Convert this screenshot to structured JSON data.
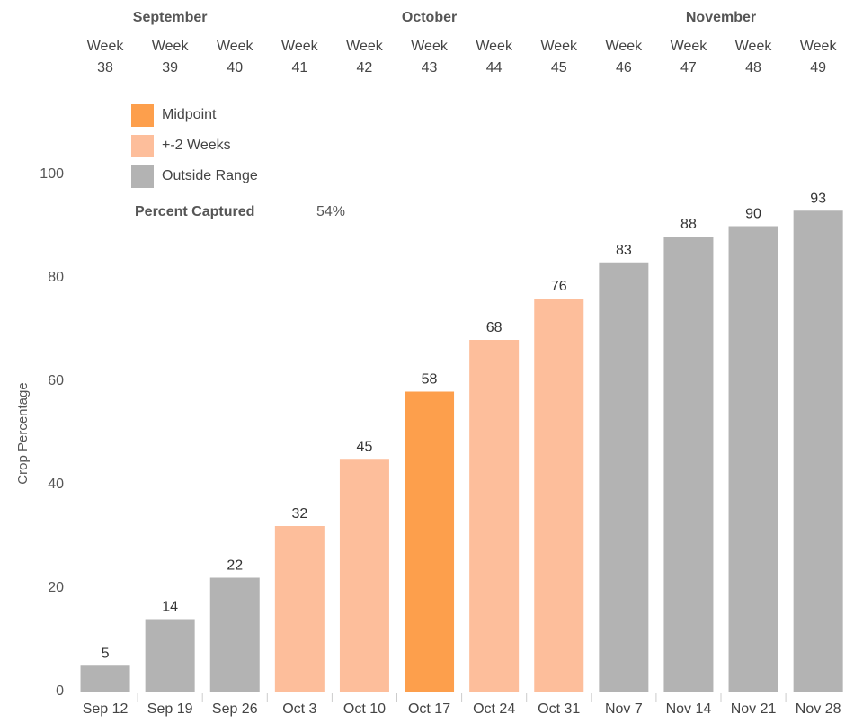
{
  "chart_data": {
    "type": "bar",
    "months": [
      "September",
      "October",
      "November"
    ],
    "weeks": [
      "Week 38",
      "Week 39",
      "Week 40",
      "Week 41",
      "Week 42",
      "Week 43",
      "Week 44",
      "Week 45",
      "Week 46",
      "Week 47",
      "Week 48",
      "Week 49"
    ],
    "categories": [
      "Sep 12",
      "Sep 19",
      "Sep 26",
      "Oct 3",
      "Oct 10",
      "Oct 17",
      "Oct 24",
      "Oct 31",
      "Nov 7",
      "Nov 14",
      "Nov 21",
      "Nov 28"
    ],
    "values": [
      5,
      14,
      22,
      32,
      45,
      58,
      68,
      76,
      83,
      88,
      90,
      93
    ],
    "colors": [
      "#b3b3b3",
      "#b3b3b3",
      "#b3b3b3",
      "#fdbe9b",
      "#fdbe9b",
      "#fd9f4c",
      "#fdbe9b",
      "#fdbe9b",
      "#b3b3b3",
      "#b3b3b3",
      "#b3b3b3",
      "#b3b3b3"
    ],
    "legend": [
      {
        "label": "Midpoint",
        "color": "#fd9f4c"
      },
      {
        "label": "+-2 Weeks",
        "color": "#fdbe9b"
      },
      {
        "label": "Outside Range",
        "color": "#b3b3b3"
      }
    ],
    "annotation": {
      "label": "Percent Captured",
      "value": "54%"
    },
    "y_label": "Crop Percentage",
    "ylim": [
      0,
      100
    ],
    "yticks": [
      0,
      20,
      40,
      60,
      80,
      100
    ],
    "grid": false
  }
}
